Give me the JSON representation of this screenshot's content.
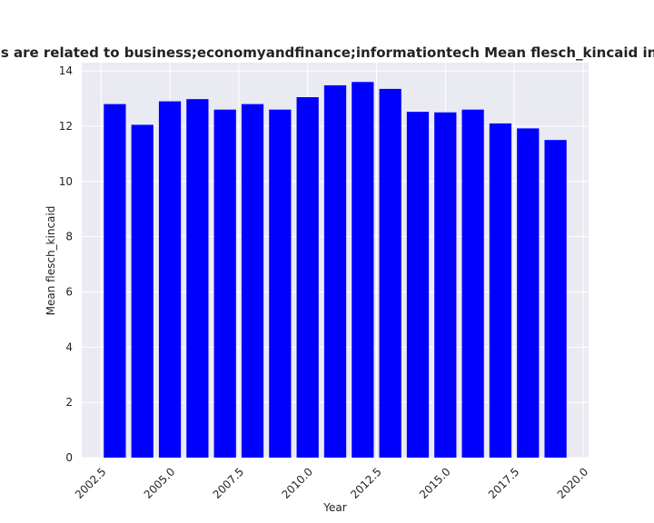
{
  "chart_data": {
    "type": "bar",
    "title": "Privacy policies are related to business;economyandfinance;informationtech Mean flesch_kincaid in privacy policies",
    "xlabel": "Year",
    "ylabel": "Mean flesch_kincaid",
    "x": [
      2003,
      2004,
      2005,
      2006,
      2007,
      2008,
      2009,
      2010,
      2011,
      2012,
      2013,
      2014,
      2015,
      2016,
      2017,
      2018,
      2019
    ],
    "values": [
      12.8,
      12.05,
      12.9,
      12.98,
      12.6,
      12.8,
      12.6,
      13.05,
      13.48,
      13.6,
      13.35,
      12.52,
      12.5,
      12.6,
      12.1,
      11.92,
      11.5
    ],
    "xlim": [
      2001.8,
      2020.2
    ],
    "ylim": [
      0,
      14.3
    ],
    "xticks": [
      2002.5,
      2005.0,
      2007.5,
      2010.0,
      2012.5,
      2015.0,
      2017.5,
      2020.0
    ],
    "xtick_labels": [
      "2002.5",
      "2005.0",
      "2007.5",
      "2010.0",
      "2012.5",
      "2015.0",
      "2017.5",
      "2020.0"
    ],
    "yticks": [
      0,
      2,
      4,
      6,
      8,
      10,
      12,
      14
    ],
    "ytick_labels": [
      "0",
      "2",
      "4",
      "6",
      "8",
      "10",
      "12",
      "14"
    ],
    "bar_color": "#0000ff",
    "plot_background": "#eaeaf2",
    "grid_color": "#ffffff",
    "grid": true
  }
}
